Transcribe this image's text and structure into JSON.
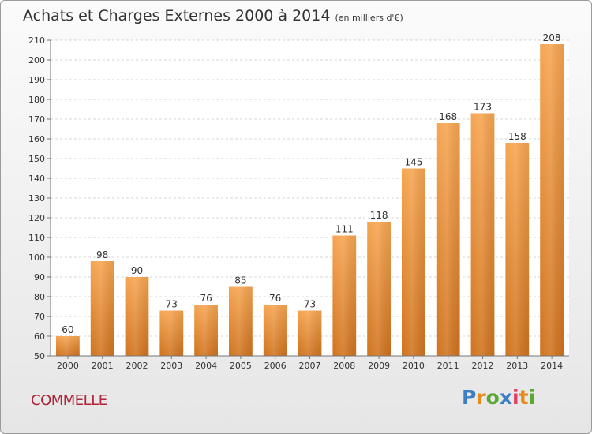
{
  "header": {
    "title": "Achats et Charges Externes 2000 à 2014",
    "subtitle": "(en milliers d'€)"
  },
  "footer": {
    "commune": "COMMELLE",
    "logo_text": "Proxiti",
    "logo_colors": [
      "#3a7fc4",
      "#e88a1a",
      "#5aa832",
      "#3a7fc4",
      "#e04060",
      "#e88a1a",
      "#5aa832"
    ]
  },
  "chart_data": {
    "type": "bar",
    "categories": [
      "2000",
      "2001",
      "2002",
      "2003",
      "2004",
      "2005",
      "2006",
      "2007",
      "2008",
      "2009",
      "2010",
      "2011",
      "2012",
      "2013",
      "2014"
    ],
    "values": [
      60,
      98,
      90,
      73,
      76,
      85,
      76,
      73,
      111,
      118,
      145,
      168,
      173,
      158,
      208
    ],
    "title": "Achats et Charges Externes 2000 à 2014",
    "ylim": [
      50,
      210
    ],
    "yticks": [
      50,
      60,
      70,
      80,
      90,
      100,
      110,
      120,
      130,
      140,
      150,
      160,
      170,
      180,
      190,
      200,
      210
    ],
    "grid": true,
    "bar_color_top": "#f6a551",
    "bar_color_bottom": "#d0731e",
    "show_data_labels": true
  }
}
